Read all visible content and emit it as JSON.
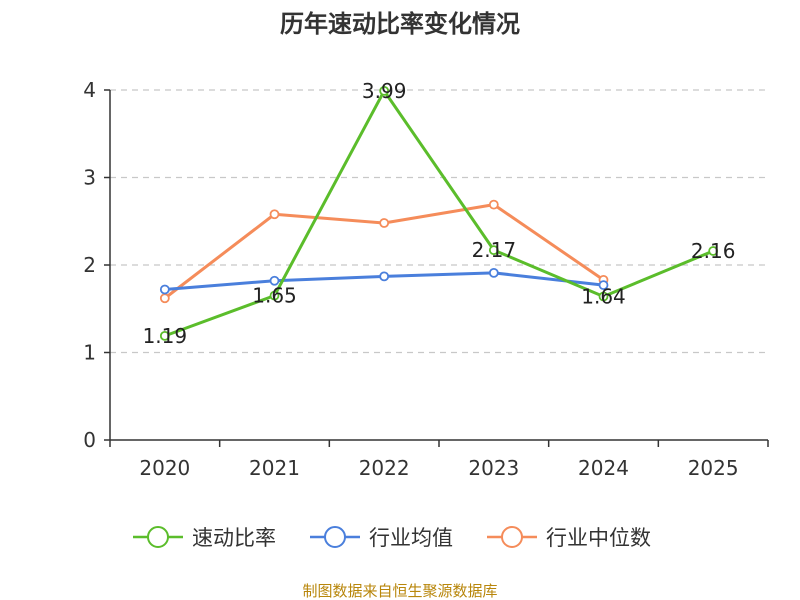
{
  "chart_data": {
    "type": "line",
    "title": "历年速动比率变化情况",
    "categories": [
      "2020",
      "2021",
      "2022",
      "2023",
      "2024",
      "2025"
    ],
    "ylim": [
      0,
      4
    ],
    "yticks": [
      "0",
      "1",
      "2",
      "3",
      "4"
    ],
    "grid": true,
    "legend_position": "bottom",
    "series": [
      {
        "name": "速动比率",
        "color": "#5bbd2b",
        "values": [
          1.19,
          1.65,
          3.99,
          2.17,
          1.64,
          2.16
        ],
        "labels": [
          "1.19",
          "1.65",
          "3.99",
          "2.17",
          "1.64",
          "2.16"
        ]
      },
      {
        "name": "行业均值",
        "color": "#4a7fdc",
        "values": [
          1.72,
          1.82,
          1.87,
          1.91,
          1.77,
          null
        ]
      },
      {
        "name": "行业中位数",
        "color": "#f58c5a",
        "values": [
          1.62,
          2.58,
          2.48,
          2.69,
          1.83,
          null
        ]
      }
    ],
    "source": "制图数据来自恒生聚源数据库"
  }
}
